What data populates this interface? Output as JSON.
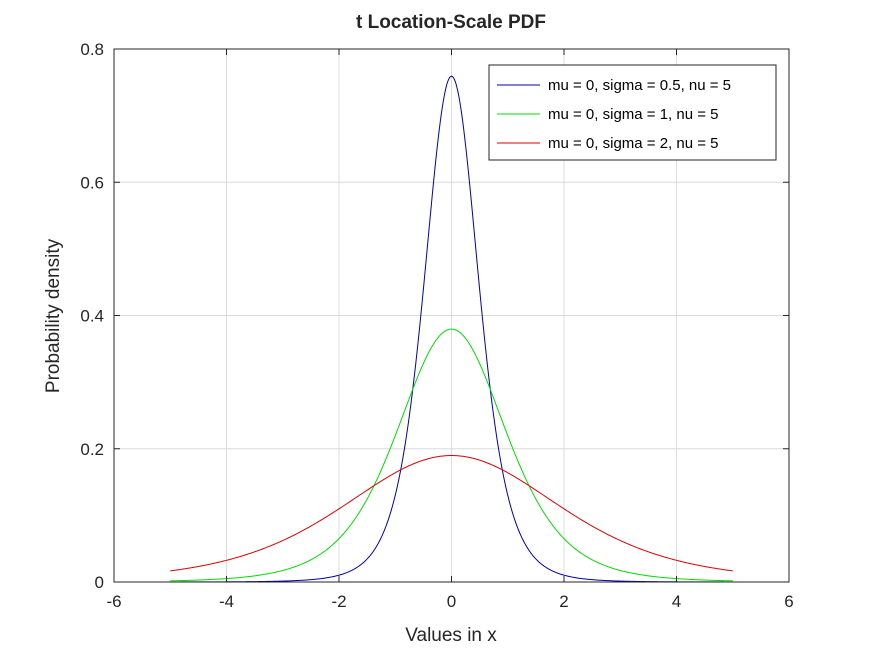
{
  "chart_data": {
    "type": "line",
    "title": "t Location-Scale PDF",
    "xlabel": "Values in x",
    "ylabel": "Probability density",
    "xlim": [
      -6,
      6
    ],
    "ylim": [
      0,
      0.8
    ],
    "xticks": [
      -6,
      -4,
      -2,
      0,
      2,
      4,
      6
    ],
    "yticks": [
      0,
      0.2,
      0.4,
      0.6,
      0.8
    ],
    "xtick_labels": [
      "-6",
      "-4",
      "-2",
      "0",
      "2",
      "4",
      "6"
    ],
    "ytick_labels": [
      "0",
      "0.2",
      "0.4",
      "0.6",
      "0.8"
    ],
    "grid": true,
    "legend_position": "top-right",
    "x_range": [
      -5,
      5
    ],
    "series": [
      {
        "name": "mu = 0, sigma = 0.5, nu = 5",
        "mu": 0,
        "sigma": 0.5,
        "nu": 5,
        "color": "#0000b0",
        "x": [
          -5,
          -4,
          -3,
          -2,
          -1.5,
          -1,
          -0.5,
          0,
          0.5,
          1,
          1.5,
          2,
          3,
          4,
          5
        ],
        "y": [
          0.0004,
          0.0008,
          0.0022,
          0.0102,
          0.0339,
          0.13,
          0.4396,
          0.7596,
          0.4396,
          0.13,
          0.0339,
          0.0102,
          0.0022,
          0.0008,
          0.0004
        ]
      },
      {
        "name": "mu = 0, sigma = 1, nu = 5",
        "mu": 0,
        "sigma": 1,
        "nu": 5,
        "color": "#00dd00",
        "x": [
          -5,
          -4,
          -3,
          -2,
          -1.5,
          -1,
          -0.5,
          0,
          0.5,
          1,
          1.5,
          2,
          3,
          4,
          5
        ],
        "y": [
          0.0018,
          0.0051,
          0.0173,
          0.0651,
          0.1245,
          0.2197,
          0.3279,
          0.3796,
          0.3279,
          0.2197,
          0.1245,
          0.0651,
          0.0173,
          0.0051,
          0.0018
        ]
      },
      {
        "name": "mu = 0, sigma = 2, nu = 5",
        "mu": 0,
        "sigma": 2,
        "nu": 5,
        "color": "#dd0000",
        "x": [
          -5,
          -4,
          -3,
          -2,
          -1.5,
          -1,
          -0.5,
          0,
          0.5,
          1,
          1.5,
          2,
          3,
          4,
          5
        ],
        "y": [
          0.0172,
          0.0325,
          0.0623,
          0.1098,
          0.1369,
          0.164,
          0.1831,
          0.1898,
          0.1831,
          0.164,
          0.1369,
          0.1098,
          0.0623,
          0.0325,
          0.0172
        ]
      }
    ]
  }
}
